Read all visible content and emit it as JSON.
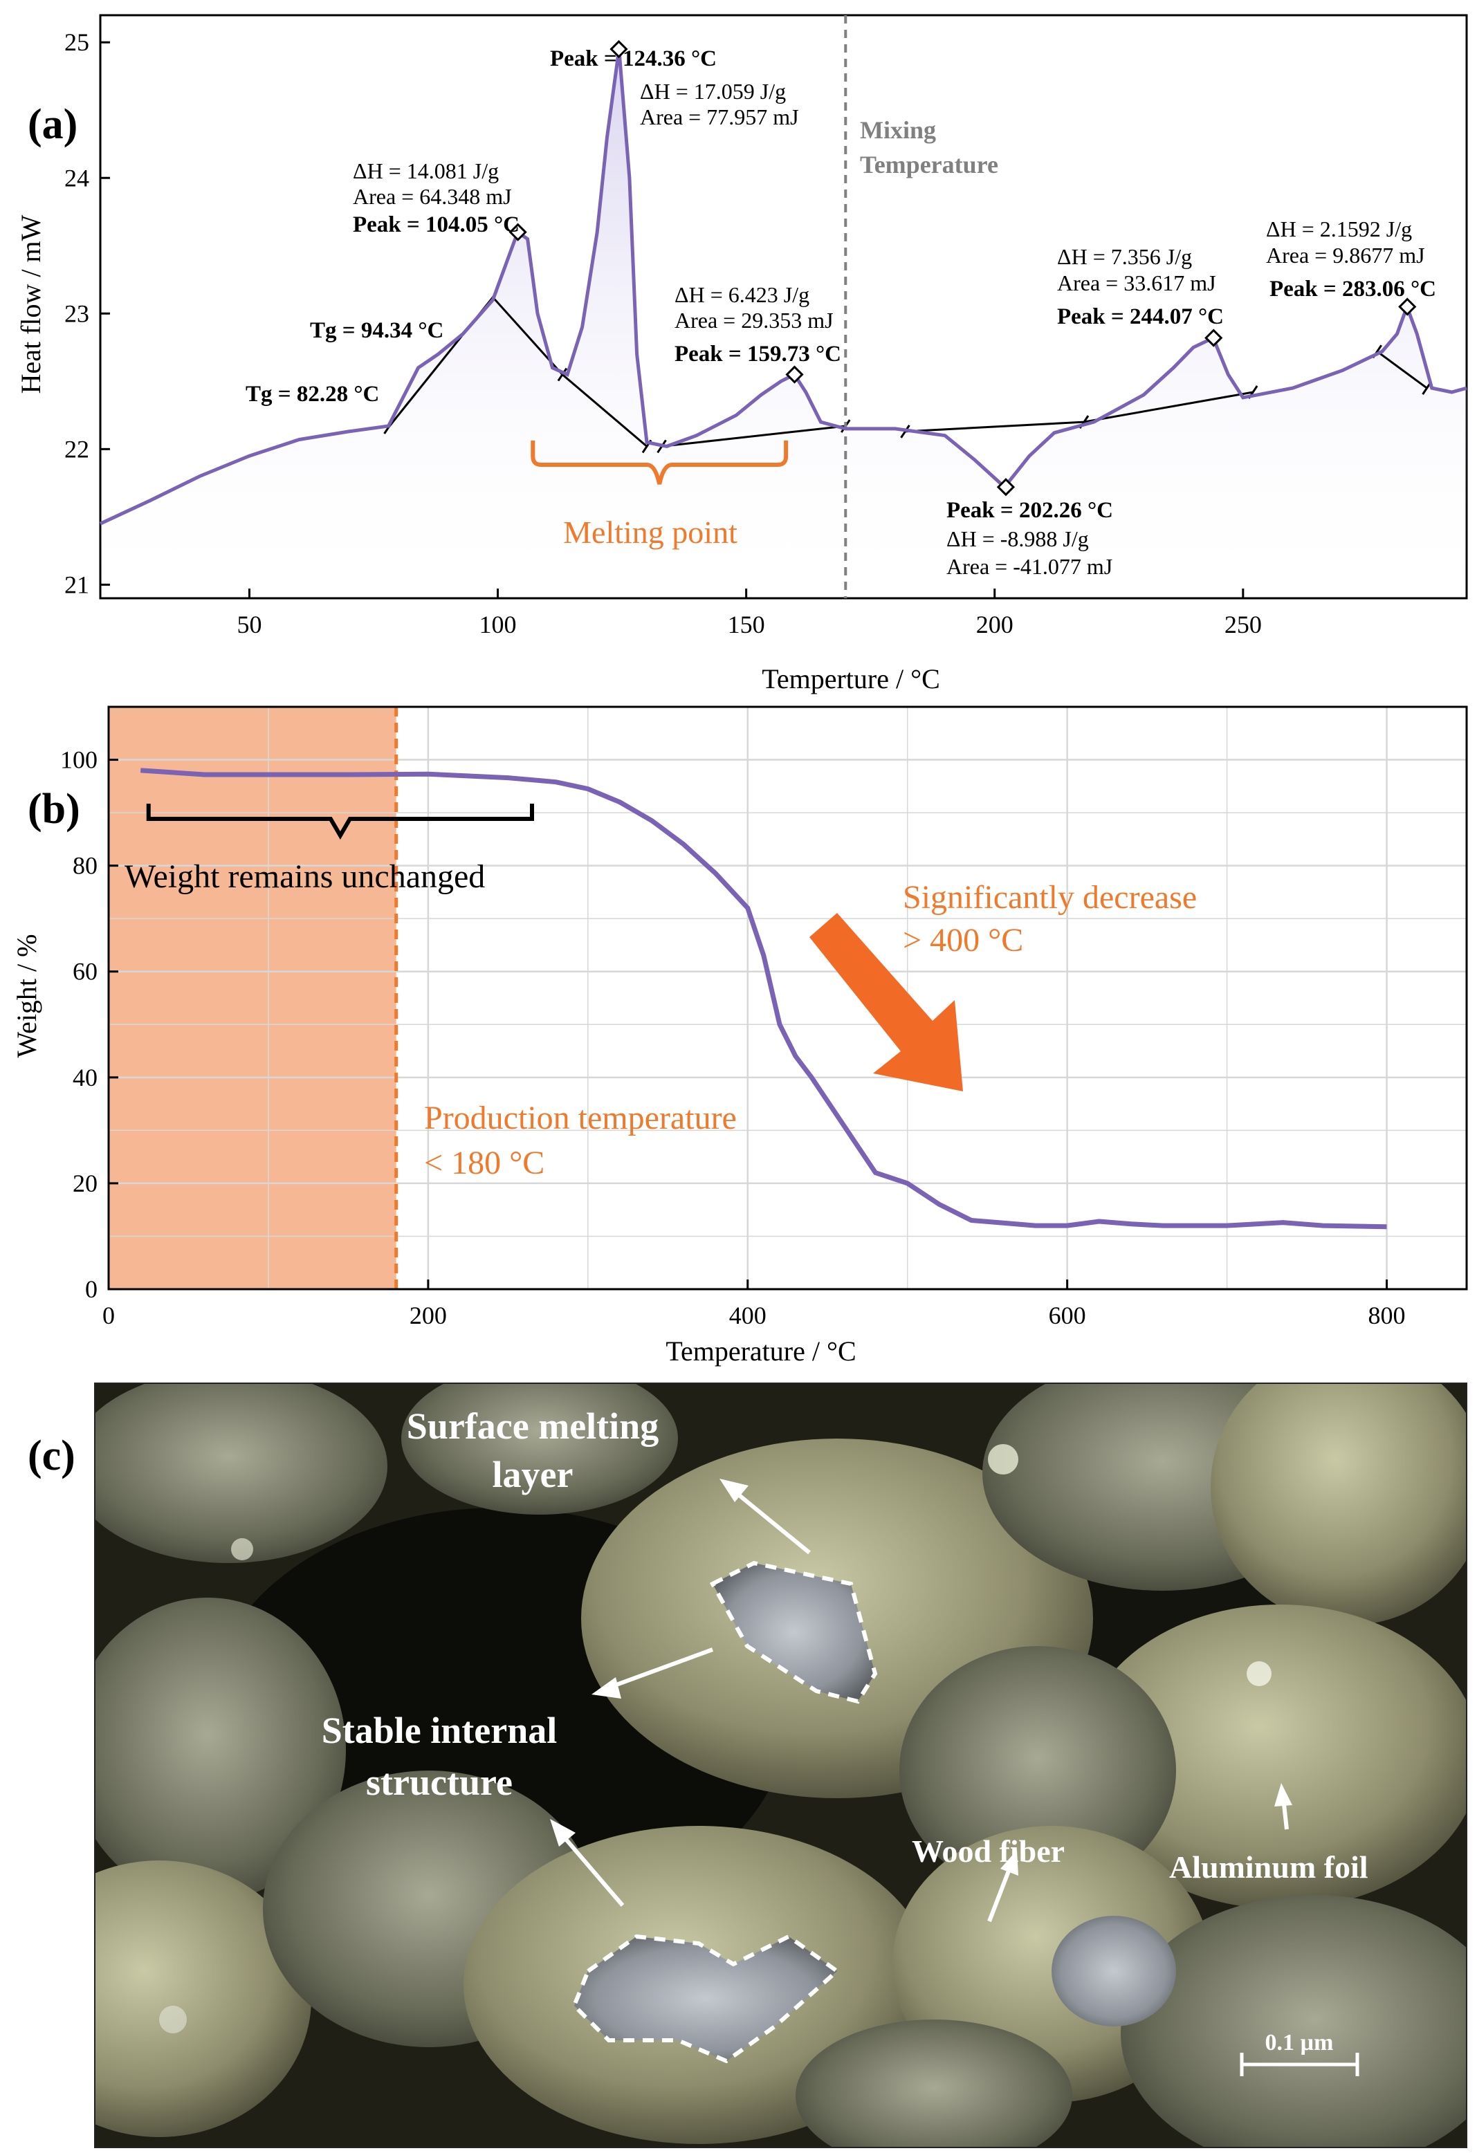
{
  "panels": {
    "a": "(a)",
    "b": "(b)",
    "c": "(c)"
  },
  "colors": {
    "curve": "#7a62b5",
    "orange": "#f07a2c",
    "shade": "#f6b894",
    "grey": "#808080"
  },
  "chart_data": [
    {
      "type": "line",
      "panel": "a",
      "xlabel": "Temperture / °C",
      "ylabel": "Heat flow / mW",
      "xlim": [
        20,
        295
      ],
      "ylim": [
        20.9,
        25.2
      ],
      "xticks": [
        50,
        100,
        150,
        200,
        250
      ],
      "yticks": [
        21,
        22,
        23,
        24,
        25
      ],
      "grid": false,
      "series": [
        {
          "x": [
            20,
            30,
            40,
            50,
            60,
            70,
            78,
            84,
            88,
            93,
            99,
            102,
            104,
            106,
            108,
            111,
            114,
            117,
            120,
            122,
            124.4,
            126.5,
            128,
            130,
            134,
            140,
            148,
            153,
            157,
            159.7,
            162,
            165,
            170,
            180,
            190,
            196,
            202,
            207,
            212,
            220,
            230,
            236,
            240,
            244,
            247,
            250,
            260,
            270,
            278,
            281,
            283,
            285,
            288,
            292,
            295
          ],
          "y": [
            21.45,
            21.62,
            21.8,
            21.95,
            22.07,
            22.13,
            22.17,
            22.6,
            22.7,
            22.85,
            23.1,
            23.4,
            23.6,
            23.55,
            23.0,
            22.6,
            22.55,
            22.9,
            23.6,
            24.3,
            24.95,
            24.0,
            22.7,
            22.05,
            22.02,
            22.1,
            22.25,
            22.4,
            22.5,
            22.55,
            22.42,
            22.2,
            22.15,
            22.15,
            22.1,
            21.92,
            21.72,
            21.95,
            22.12,
            22.2,
            22.4,
            22.6,
            22.75,
            22.82,
            22.55,
            22.38,
            22.45,
            22.58,
            22.72,
            22.85,
            23.05,
            22.85,
            22.45,
            22.42,
            22.45
          ]
        }
      ],
      "baselines": [
        {
          "x": [
            78,
            99,
            113,
            130
          ],
          "y": [
            22.16,
            23.12,
            22.55,
            22.02
          ]
        },
        {
          "x": [
            133,
            170
          ],
          "y": [
            22.02,
            22.17
          ]
        },
        {
          "x": [
            182,
            218,
            252
          ],
          "y": [
            22.13,
            22.2,
            22.42
          ]
        },
        {
          "x": [
            277,
            287
          ],
          "y": [
            22.72,
            22.45
          ]
        }
      ],
      "annotations": {
        "peak1": {
          "dh": "ΔH = 14.081 J/g",
          "area": "Area = 64.348 mJ",
          "peak": "Peak = 104.05 °C",
          "x": 104.05,
          "y": 23.6
        },
        "peak2": {
          "peak": "Peak = 124.36 °C",
          "dh": "ΔH = 17.059 J/g",
          "area": "Area = 77.957 mJ",
          "x": 124.36,
          "y": 24.95
        },
        "peak3": {
          "dh": "ΔH = 6.423 J/g",
          "area": "Area = 29.353 mJ",
          "peak": "Peak = 159.73 °C",
          "x": 159.73,
          "y": 22.55
        },
        "peak4": {
          "peak": "Peak = 202.26 °C",
          "dh": "ΔH = -8.988 J/g",
          "area": "Area = -41.077 mJ",
          "x": 202.26,
          "y": 21.72
        },
        "peak5": {
          "dh": "ΔH = 7.356 J/g",
          "area": "Area = 33.617 mJ",
          "peak": "Peak = 244.07 °C",
          "x": 244.07,
          "y": 22.82
        },
        "peak6": {
          "dh": "ΔH = 2.1592 J/g",
          "area": "Area = 9.8677 mJ",
          "peak": "Peak = 283.06 °C",
          "x": 283.06,
          "y": 23.05
        },
        "tg1": "Tg = 82.28 °C",
        "tg2": "Tg = 94.34 °C",
        "mixing_line": 170,
        "mixing_label_1": "Mixing",
        "mixing_label_2": "Temperature",
        "melting": "Melting point",
        "melting_range": [
          104,
          158
        ]
      }
    },
    {
      "type": "line",
      "panel": "b",
      "xlabel": "Temperature / °C",
      "ylabel": "Weight / %",
      "xlim": [
        0,
        850
      ],
      "ylim": [
        0,
        110
      ],
      "xticks": [
        0,
        200,
        400,
        600,
        800
      ],
      "yticks": [
        0,
        20,
        40,
        60,
        80,
        100
      ],
      "grid": true,
      "series": [
        {
          "x": [
            20,
            40,
            60,
            80,
            100,
            150,
            200,
            250,
            280,
            300,
            320,
            340,
            360,
            380,
            400,
            410,
            420,
            430,
            440,
            460,
            480,
            500,
            520,
            540,
            560,
            580,
            600,
            620,
            640,
            660,
            700,
            735,
            760,
            800
          ],
          "y": [
            98,
            97.6,
            97.2,
            97.2,
            97.2,
            97.2,
            97.3,
            96.6,
            95.8,
            94.5,
            92,
            88.5,
            84,
            78.5,
            72,
            63,
            50,
            44,
            40,
            31,
            22,
            20,
            16,
            13,
            12.5,
            12,
            12,
            12.8,
            12.3,
            12,
            12,
            12.6,
            12,
            11.8
          ]
        }
      ],
      "annotations": {
        "production_line": 180,
        "unchanged": "Weight remains unchanged",
        "unchanged_range": [
          25,
          265
        ],
        "decrease_1": "Significantly decrease",
        "decrease_2": "> 400 °C",
        "production_1": "Production temperature",
        "production_2": "< 180 °C"
      }
    }
  ],
  "photo": {
    "labels": {
      "surface_1": "Surface melting",
      "surface_2": "layer",
      "stable_1": "Stable internal",
      "stable_2": "structure",
      "wood": "Wood fiber",
      "aluminum": "Aluminum foil",
      "scale": "0.1 µm"
    }
  }
}
